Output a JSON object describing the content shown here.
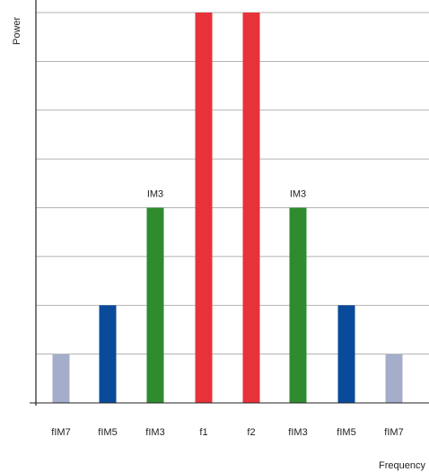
{
  "chart_data": {
    "type": "bar",
    "title": "",
    "xlabel": "Frequency",
    "ylabel": "Power",
    "categories": [
      "fIM7",
      "fIM5",
      "fIM3",
      "f1",
      "f2",
      "fIM3",
      "fIM5",
      "fIM7"
    ],
    "values": [
      1,
      2,
      4,
      8,
      8,
      4,
      2,
      1
    ],
    "ylim": [
      0,
      8
    ],
    "grid": true,
    "legend": "none",
    "bar_colors": [
      "#a4adc9",
      "#0a4a9a",
      "#2e8b2e",
      "#e8323a",
      "#e8323a",
      "#2e8b2e",
      "#0a4a9a",
      "#a4adc9"
    ],
    "annotations": [
      {
        "category_index": 2,
        "text": "IM3"
      },
      {
        "category_index": 5,
        "text": "IM3"
      }
    ],
    "colors": {
      "grid": "#9a9a9a",
      "axis": "#222222"
    }
  }
}
